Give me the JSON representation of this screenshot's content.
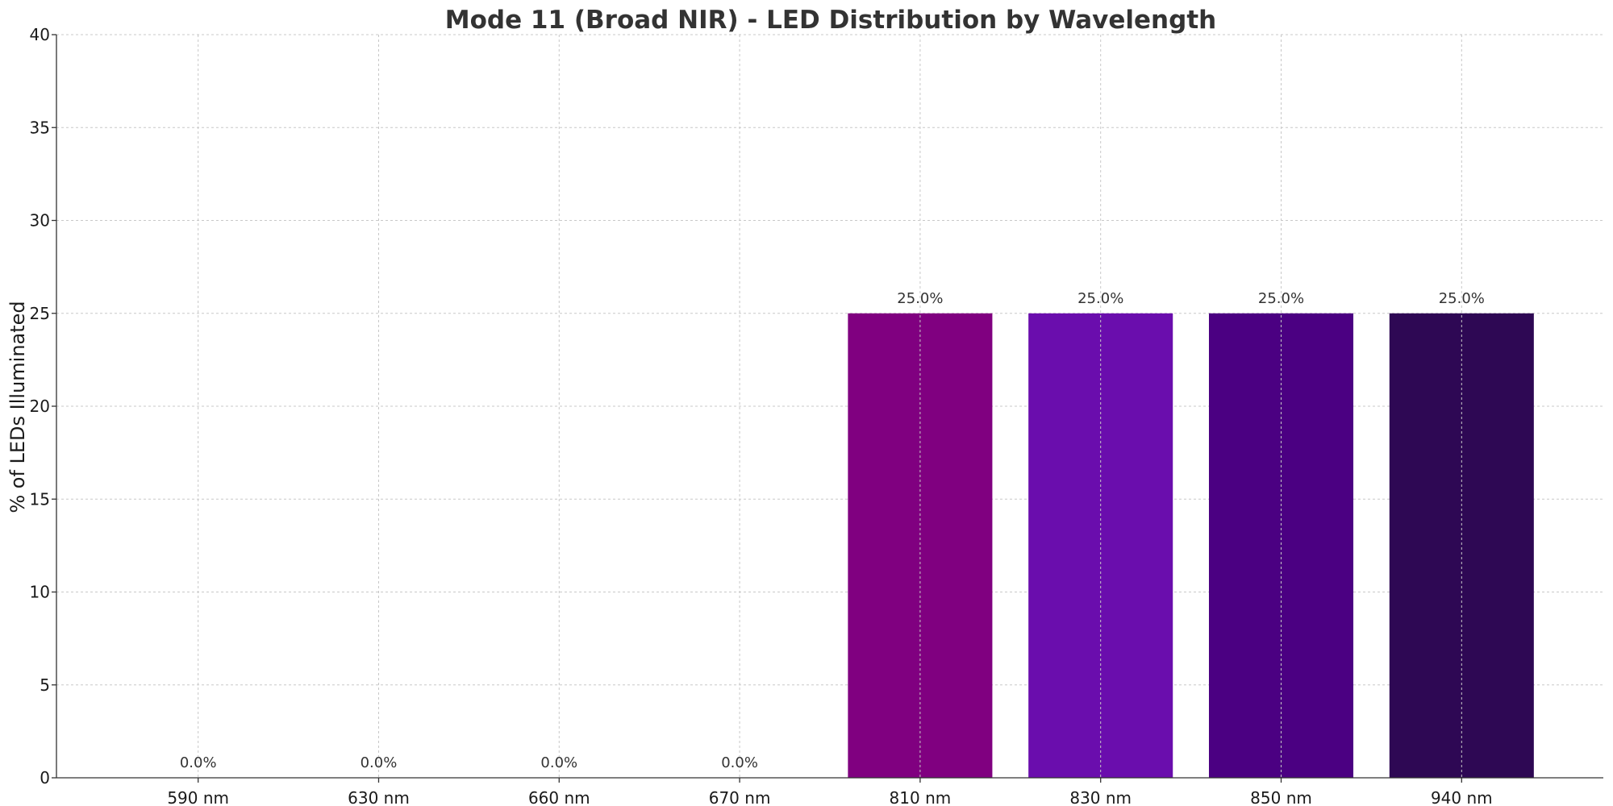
{
  "chart_data": {
    "type": "bar",
    "title": "Mode 11 (Broad NIR) - LED Distribution by Wavelength",
    "xlabel": "",
    "ylabel": "% of LEDs Illuminated",
    "categories": [
      "590 nm",
      "630 nm",
      "660 nm",
      "670 nm",
      "810 nm",
      "830 nm",
      "850 nm",
      "940 nm"
    ],
    "values": [
      0,
      0,
      0,
      0,
      25,
      25,
      25,
      25
    ],
    "value_labels": [
      "0.0%",
      "0.0%",
      "0.0%",
      "0.0%",
      "25.0%",
      "25.0%",
      "25.0%",
      "25.0%"
    ],
    "colors": [
      "#ffd700",
      "#ff4500",
      "#dc143c",
      "#b22222",
      "#800080",
      "#6a0dad",
      "#4b0082",
      "#2e0854"
    ],
    "ylim": [
      0,
      40
    ],
    "yticks": [
      0,
      5,
      10,
      15,
      20,
      25,
      30,
      35,
      40
    ],
    "grid": true,
    "legend": "none"
  }
}
